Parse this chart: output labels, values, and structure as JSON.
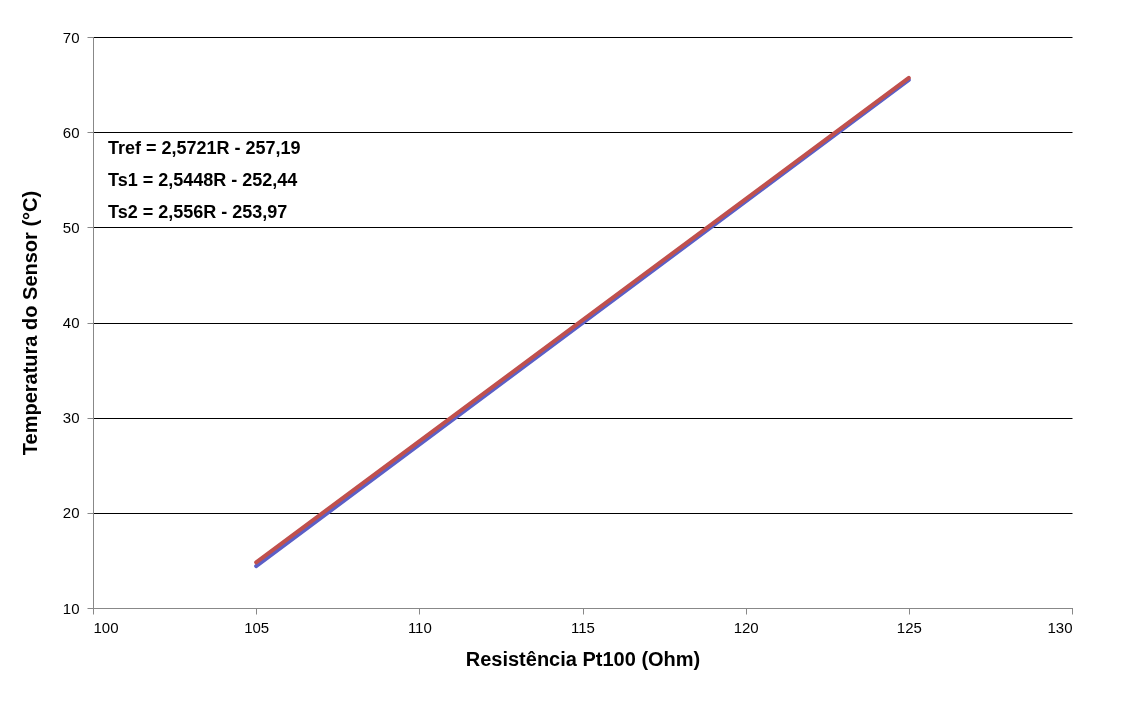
{
  "chart_data": {
    "type": "line",
    "xlabel": "Resistência Pt100 (Ohm)",
    "ylabel": "Temperatura do Sensor (°C)",
    "x": [
      105,
      125
    ],
    "series": [
      {
        "color": "#5b5fc7",
        "values": [
          14.4,
          65.5
        ]
      },
      {
        "color": "#c0504d",
        "values": [
          14.8,
          65.7
        ]
      }
    ],
    "xlim": [
      100,
      130
    ],
    "xticks": [
      100,
      105,
      110,
      115,
      120,
      125,
      130
    ],
    "ylim": [
      10,
      70
    ],
    "yticks": [
      10,
      20,
      30,
      40,
      50,
      60,
      70
    ],
    "grid": "y",
    "legend": false,
    "marker": "none",
    "line_style": "solid",
    "annotations": [
      "Tref = 2,5721R - 257,19",
      "Ts1 = 2,5448R - 252,44",
      "Ts2 = 2,556R - 253,97"
    ]
  }
}
